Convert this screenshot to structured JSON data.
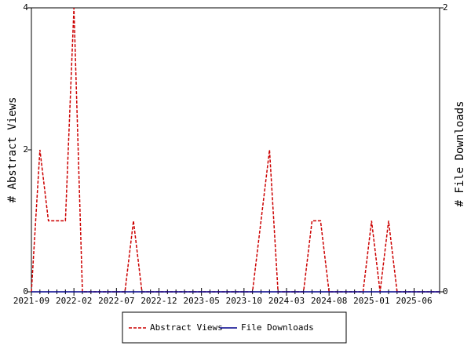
{
  "chart_data": {
    "type": "line",
    "categories": [
      "2021-09",
      null,
      null,
      null,
      null,
      "2022-02",
      null,
      null,
      null,
      null,
      "2022-07",
      null,
      null,
      null,
      null,
      "2022-12",
      null,
      null,
      null,
      null,
      "2023-05",
      null,
      null,
      null,
      null,
      "2023-10",
      null,
      null,
      null,
      null,
      "2024-03",
      null,
      null,
      null,
      null,
      "2024-08",
      null,
      null,
      null,
      null,
      "2025-01",
      null,
      null,
      null,
      null,
      "2025-06",
      null,
      null,
      null
    ],
    "series": [
      {
        "name": "Abstract Views",
        "color": "#cc0000",
        "dash": true,
        "values": [
          0,
          2,
          1,
          1,
          1,
          4,
          0,
          0,
          0,
          0,
          0,
          0,
          1,
          0,
          0,
          0,
          0,
          0,
          0,
          0,
          0,
          0,
          0,
          0,
          0,
          0,
          0,
          1,
          2,
          0,
          0,
          0,
          0,
          1,
          1,
          0,
          0,
          0,
          0,
          0,
          1,
          0,
          1,
          0,
          0,
          0,
          0,
          0,
          0
        ]
      },
      {
        "name": "File Downloads",
        "color": "#00008b",
        "axis": "y2",
        "values": [
          0,
          0,
          0,
          0,
          0,
          0,
          0,
          0,
          0,
          0,
          0,
          0,
          0,
          0,
          0,
          0,
          0,
          0,
          0,
          0,
          0,
          0,
          0,
          0,
          0,
          0,
          0,
          0,
          0,
          0,
          0,
          0,
          0,
          0,
          0,
          0,
          0,
          0,
          0,
          0,
          0,
          0,
          0,
          0,
          0,
          0,
          0,
          0,
          0
        ]
      }
    ],
    "ylabel": "# Abstract Views",
    "y2label": "# File Downloads",
    "ylim": [
      0,
      4
    ],
    "yticks": [
      0,
      2,
      4
    ],
    "y2lim": [
      0,
      2
    ],
    "y2ticks": [
      0,
      2
    ]
  }
}
